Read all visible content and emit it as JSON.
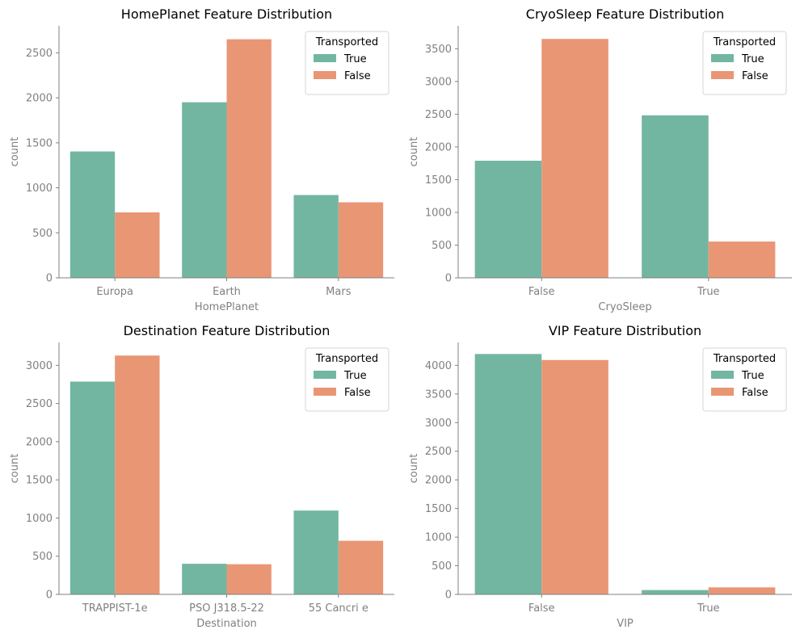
{
  "colors": {
    "true": "#72b6a1",
    "false": "#e99675",
    "axis": "#808080"
  },
  "legend": {
    "title": "Transported",
    "labels": [
      "True",
      "False"
    ]
  },
  "chart_data": [
    {
      "type": "bar",
      "title": "HomePlanet Feature Distribution",
      "xlabel": "HomePlanet",
      "ylabel": "count",
      "categories": [
        "Europa",
        "Earth",
        "Mars"
      ],
      "series": [
        {
          "name": "True",
          "values": [
            1404,
            1951,
            920
          ]
        },
        {
          "name": "False",
          "values": [
            727,
            2651,
            839
          ]
        }
      ],
      "ylim": [
        0,
        2800
      ],
      "yticks": [
        0,
        500,
        1000,
        1500,
        2000,
        2500
      ],
      "legend": "top-right",
      "grid": false
    },
    {
      "type": "bar",
      "title": "CryoSleep Feature Distribution",
      "xlabel": "CryoSleep",
      "ylabel": "count",
      "categories": [
        "False",
        "True"
      ],
      "series": [
        {
          "name": "True",
          "values": [
            1789,
            2483
          ]
        },
        {
          "name": "False",
          "values": [
            3650,
            554
          ]
        }
      ],
      "ylim": [
        0,
        3850
      ],
      "yticks": [
        0,
        500,
        1000,
        1500,
        2000,
        2500,
        3000,
        3500
      ],
      "legend": "top-right",
      "grid": false
    },
    {
      "type": "bar",
      "title": "Destination Feature Distribution",
      "xlabel": "Destination",
      "ylabel": "count",
      "categories": [
        "TRAPPIST-1e",
        "PSO J318.5-22",
        "55 Cancri e"
      ],
      "series": [
        {
          "name": "True",
          "values": [
            2787,
            401,
            1098
          ]
        },
        {
          "name": "False",
          "values": [
            3128,
            395,
            702
          ]
        }
      ],
      "ylim": [
        0,
        3300
      ],
      "yticks": [
        0,
        500,
        1000,
        1500,
        2000,
        2500,
        3000
      ],
      "legend": "top-right",
      "grid": false
    },
    {
      "type": "bar",
      "title": "VIP Feature Distribution",
      "xlabel": "VIP",
      "ylabel": "count",
      "categories": [
        "False",
        "True"
      ],
      "series": [
        {
          "name": "True",
          "values": [
            4198,
            76
          ]
        },
        {
          "name": "False",
          "values": [
            4093,
            123
          ]
        }
      ],
      "ylim": [
        0,
        4400
      ],
      "yticks": [
        0,
        500,
        1000,
        1500,
        2000,
        2500,
        3000,
        3500,
        4000
      ],
      "legend": "top-right",
      "grid": false
    }
  ]
}
